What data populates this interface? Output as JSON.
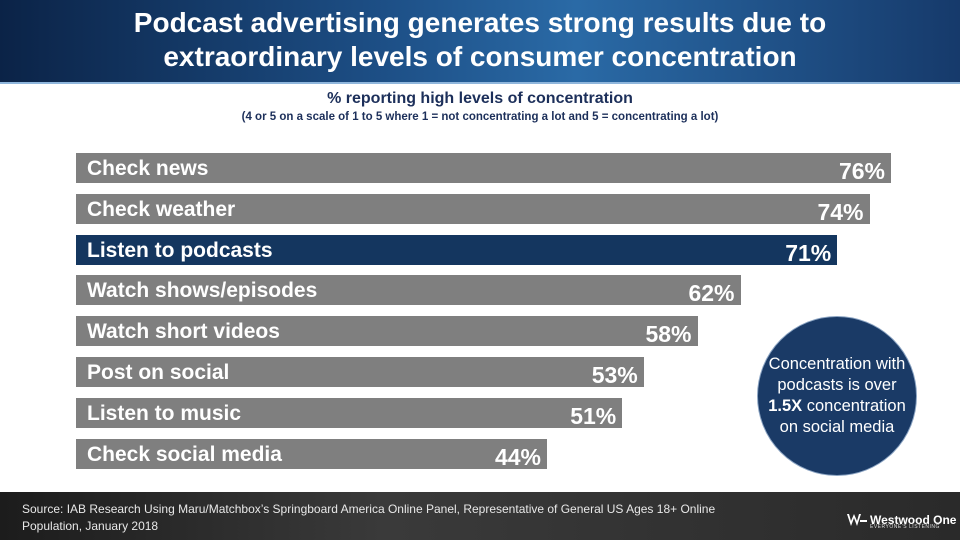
{
  "header": {
    "title_line1": "Podcast advertising generates strong results due to",
    "title_line2": "extraordinary levels of consumer concentration"
  },
  "chart_data": {
    "type": "bar",
    "orientation": "horizontal",
    "title": "% reporting high levels of concentration",
    "subtitle": "(4 or 5 on a scale of 1 to 5 where 1 = not concentrating a lot and 5 = concentrating a lot)",
    "categories": [
      "Check news",
      "Check weather",
      "Listen to podcasts",
      "Watch shows/episodes",
      "Watch short videos",
      "Post on social",
      "Listen to music",
      "Check social media"
    ],
    "values": [
      76,
      74,
      71,
      62,
      58,
      53,
      51,
      44
    ],
    "value_labels": [
      "76%",
      "74%",
      "71%",
      "62%",
      "58%",
      "53%",
      "51%",
      "44%"
    ],
    "highlight_category": "Listen to podcasts",
    "colors": {
      "default": "#7f7f7f",
      "highlight": "#14365f"
    },
    "grid": false,
    "legend": "none"
  },
  "callout": {
    "line1": "Concentration with podcasts is over ",
    "emphasis": "1.5X",
    "line2": " concentration on social media"
  },
  "footer": {
    "source": "Source: IAB Research Using Maru/Matchbox’s Springboard America Online Panel, Representative of General US Ages 18+ Online Population, January 2018",
    "logo_name": "Westwood One",
    "logo_tagline": "EVERYONE’S LISTENING"
  }
}
